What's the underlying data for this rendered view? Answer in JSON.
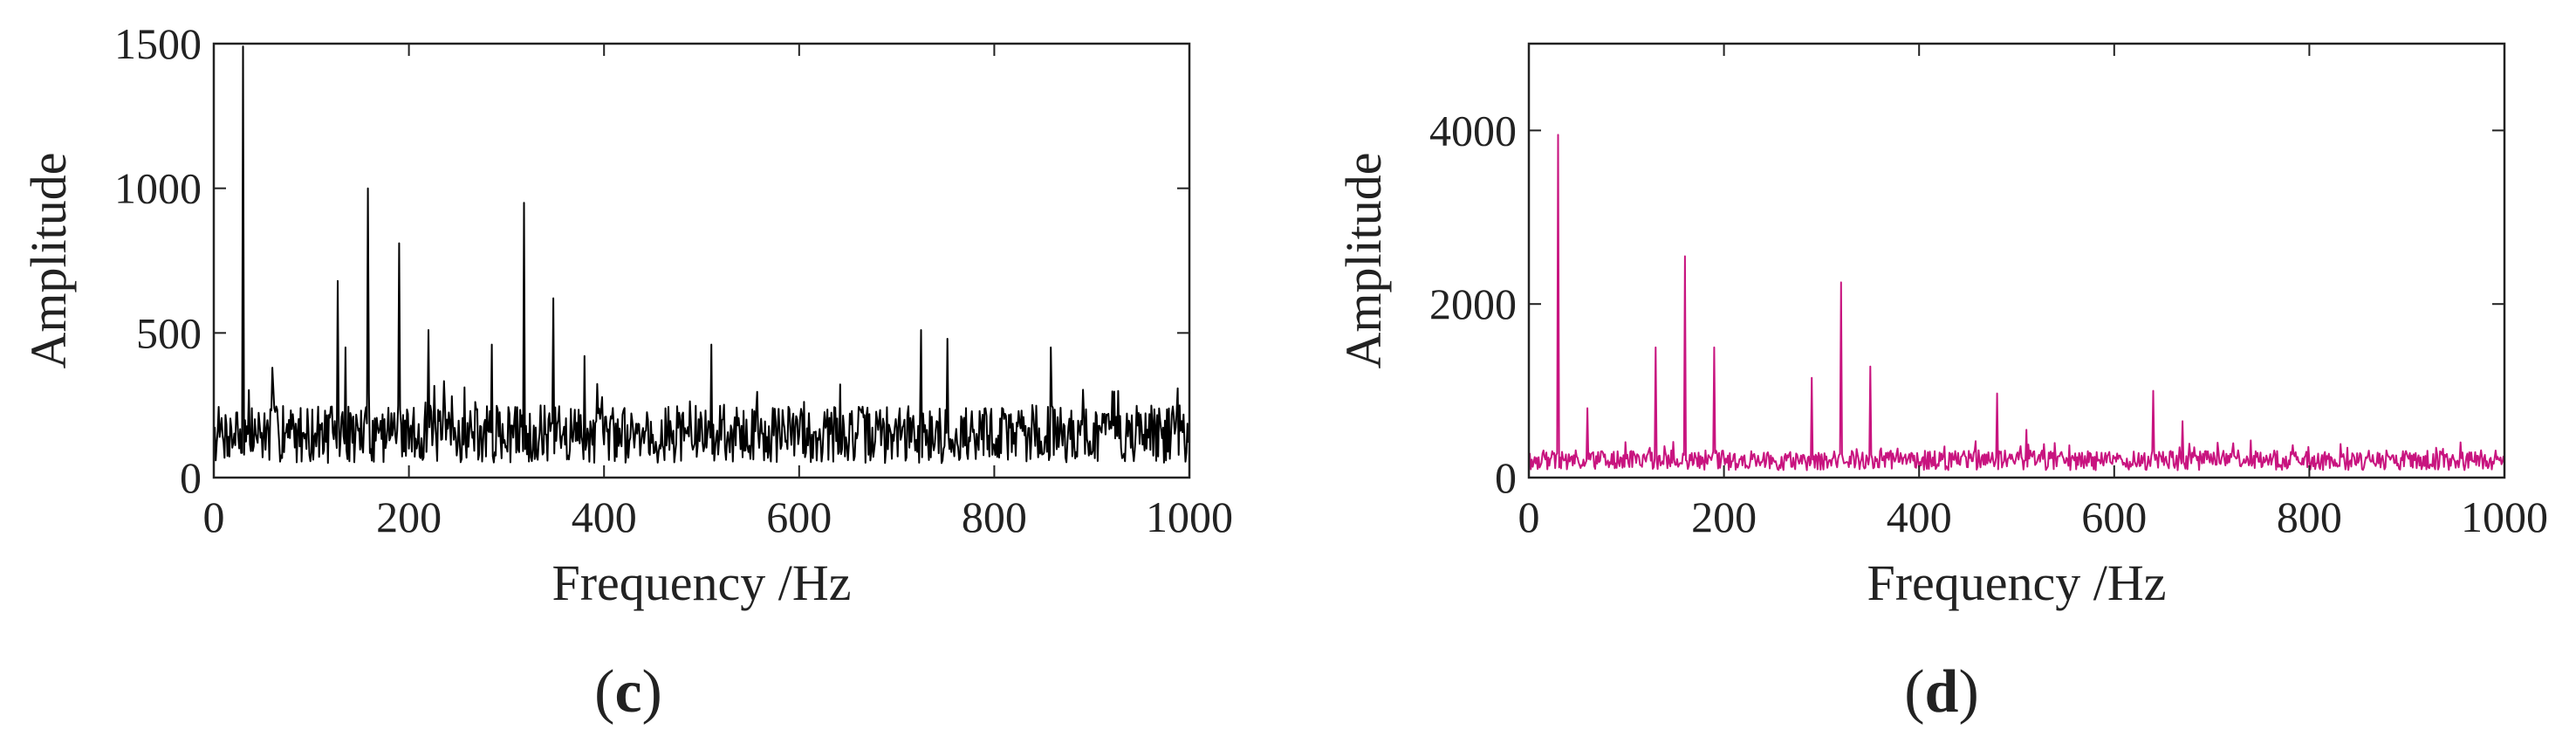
{
  "chart_data": [
    {
      "panel_label": "(c)",
      "panel_letter": "c",
      "type": "line",
      "xlabel": "Frequency /Hz",
      "ylabel": "Amplitude",
      "xlim": [
        0,
        1000
      ],
      "ylim": [
        0,
        1500
      ],
      "x_ticks": [
        0,
        200,
        400,
        600,
        800,
        1000
      ],
      "y_ticks": [
        0,
        500,
        1000,
        1500
      ],
      "grid": false,
      "color": "#000000",
      "noise": {
        "baseline": 150,
        "spread": 200,
        "seed": 7
      },
      "peaks": [
        {
          "x": 30,
          "y": 1490
        },
        {
          "x": 60,
          "y": 380
        },
        {
          "x": 127,
          "y": 680
        },
        {
          "x": 135,
          "y": 450
        },
        {
          "x": 158,
          "y": 1000
        },
        {
          "x": 190,
          "y": 810
        },
        {
          "x": 220,
          "y": 510
        },
        {
          "x": 285,
          "y": 460
        },
        {
          "x": 318,
          "y": 950
        },
        {
          "x": 348,
          "y": 620
        },
        {
          "x": 380,
          "y": 420
        },
        {
          "x": 510,
          "y": 460
        },
        {
          "x": 725,
          "y": 510
        },
        {
          "x": 752,
          "y": 480
        },
        {
          "x": 858,
          "y": 450
        }
      ]
    },
    {
      "panel_label": "(d)",
      "panel_letter": "d",
      "type": "line",
      "xlabel": "Frequency /Hz",
      "ylabel": "Amplitude",
      "xlim": [
        0,
        1000
      ],
      "ylim": [
        0,
        5000
      ],
      "x_ticks": [
        0,
        200,
        400,
        600,
        800,
        1000
      ],
      "y_ticks": [
        0,
        2000,
        4000
      ],
      "grid": false,
      "color": "#c8147f",
      "noise": {
        "baseline": 200,
        "spread": 230,
        "seed": 19
      },
      "peaks": [
        {
          "x": 30,
          "y": 3950
        },
        {
          "x": 60,
          "y": 800
        },
        {
          "x": 130,
          "y": 1500
        },
        {
          "x": 160,
          "y": 2550
        },
        {
          "x": 190,
          "y": 1500
        },
        {
          "x": 290,
          "y": 1150
        },
        {
          "x": 320,
          "y": 2250
        },
        {
          "x": 350,
          "y": 1280
        },
        {
          "x": 480,
          "y": 970
        },
        {
          "x": 510,
          "y": 550
        },
        {
          "x": 640,
          "y": 1000
        },
        {
          "x": 670,
          "y": 650
        }
      ]
    }
  ]
}
